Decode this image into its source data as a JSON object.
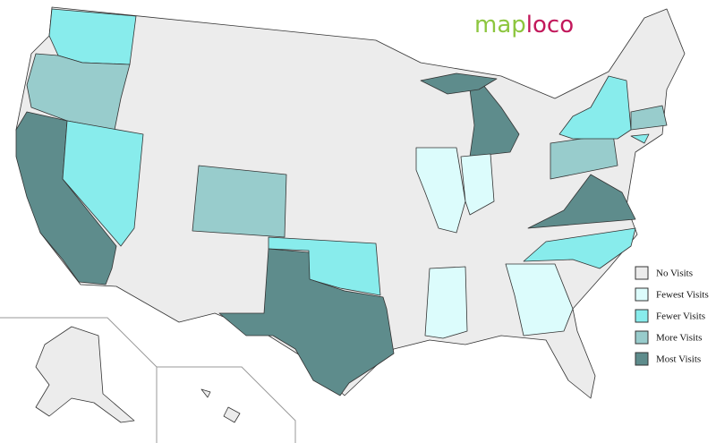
{
  "logo": {
    "first": "map",
    "second": "loco"
  },
  "legend": [
    {
      "label": "No Visits",
      "color": "#ececec"
    },
    {
      "label": "Fewest Visits",
      "color": "#dcfcfc"
    },
    {
      "label": "Fewer Visits",
      "color": "#88ecec"
    },
    {
      "label": "More Visits",
      "color": "#98cccc"
    },
    {
      "label": "Most Visits",
      "color": "#5e8c8c"
    }
  ]
}
